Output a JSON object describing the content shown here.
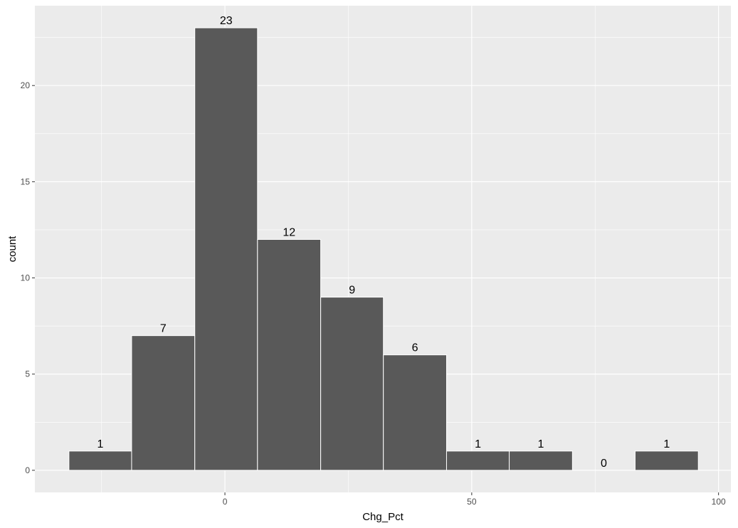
{
  "chart_data": {
    "type": "bar",
    "subtype": "histogram",
    "xlabel": "Chg_Pct",
    "ylabel": "count",
    "xlim": [
      -38.5,
      102.5
    ],
    "ylim": [
      -1.15,
      24.15
    ],
    "x_ticks": [
      0,
      50,
      100
    ],
    "y_ticks": [
      0,
      5,
      10,
      15,
      20
    ],
    "x_tick_labels": [
      "0",
      "50",
      "100"
    ],
    "y_tick_labels": [
      "0",
      "5",
      "10",
      "15",
      "20"
    ],
    "bins": [
      {
        "x0": -31.6,
        "x1": -18.9,
        "count": 1,
        "label": "1"
      },
      {
        "x0": -18.9,
        "x1": -6.1,
        "count": 7,
        "label": "7"
      },
      {
        "x0": -6.1,
        "x1": 6.6,
        "count": 23,
        "label": "23"
      },
      {
        "x0": 6.6,
        "x1": 19.4,
        "count": 12,
        "label": "12"
      },
      {
        "x0": 19.4,
        "x1": 32.1,
        "count": 9,
        "label": "9"
      },
      {
        "x0": 32.1,
        "x1": 44.9,
        "count": 6,
        "label": "6"
      },
      {
        "x0": 44.9,
        "x1": 57.6,
        "count": 1,
        "label": "1"
      },
      {
        "x0": 57.6,
        "x1": 70.4,
        "count": 1,
        "label": "1"
      },
      {
        "x0": 70.4,
        "x1": 83.1,
        "count": 0,
        "label": "0"
      },
      {
        "x0": 83.1,
        "x1": 95.9,
        "count": 1,
        "label": "1"
      }
    ],
    "grid": true,
    "legend": "none",
    "colors": {
      "panel_background": "#ebebeb",
      "grid_major": "#ffffff",
      "bar_fill": "#595959",
      "bar_outline": "#ffffff"
    }
  }
}
